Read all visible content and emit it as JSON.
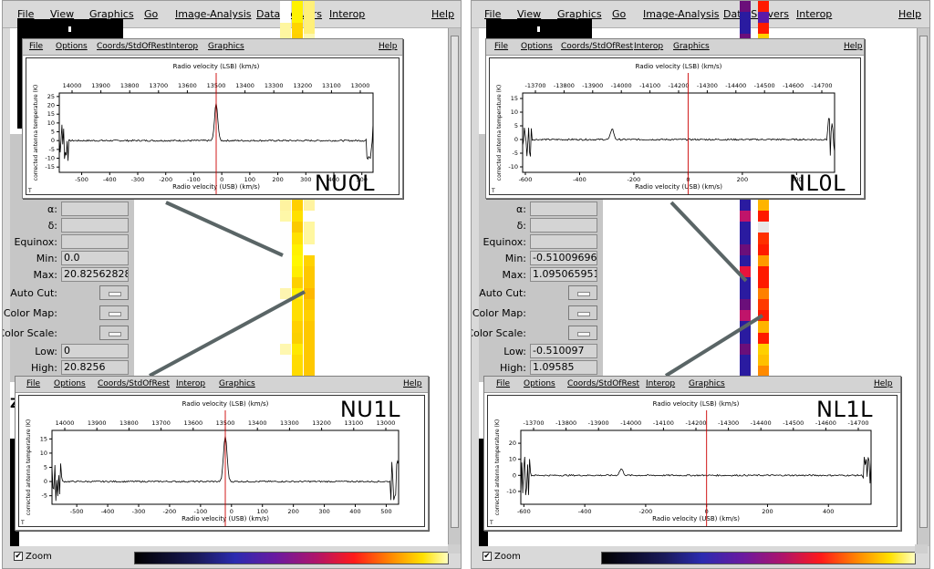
{
  "menus": {
    "items": [
      "File",
      "View",
      "Graphics",
      "Go",
      "Image-Analysis",
      "Data-Servers",
      "Interop",
      "Help"
    ]
  },
  "panel": {
    "rows": [
      {
        "label": "α:",
        "value": ""
      },
      {
        "label": "δ:",
        "value": ""
      },
      {
        "label": "Equinox:",
        "value": ""
      },
      {
        "label": "Min:",
        "value": "",
        "key": "min"
      },
      {
        "label": "Max:",
        "value": "",
        "key": "max"
      },
      {
        "label": "Auto Cut:",
        "button": true
      },
      {
        "label": "Color Map:",
        "button": true
      },
      {
        "label": "Color Scale:",
        "button": true
      },
      {
        "label": "Low:",
        "value": "",
        "key": "low"
      },
      {
        "label": "High:",
        "value": "",
        "key": "high"
      }
    ]
  },
  "left_window": {
    "min": "0.0",
    "max": "20.8256282806",
    "low": "0",
    "high": "20.8256",
    "left_cutoff_text": "Z"
  },
  "right_window": {
    "min": "-0.5100969672",
    "max": "1.0950659513",
    "low": "-0.510097",
    "high": "1.09585"
  },
  "zoom_label": "Zoom",
  "spectrum_menu": [
    "File",
    "Options",
    "Coords/StdOfRest",
    "Interop",
    "Graphics",
    "Help"
  ],
  "axis_titles": {
    "top": "Radio velocity (LSB) (km/s)",
    "bottom": "Radio velocity (USB) (km/s)",
    "y": "corrected antenna temperature (K)"
  },
  "spectra": [
    {
      "id": "NU0L",
      "label": "NU0L",
      "top_ticks": [
        "14000",
        "13900",
        "13800",
        "13700",
        "13600",
        "13500",
        "13400",
        "13300",
        "13200",
        "13100",
        "13000"
      ],
      "bottom_ticks": [
        "-500",
        "-400",
        "-300",
        "-200",
        "-100",
        "0",
        "100",
        "200",
        "300",
        "400",
        "500"
      ],
      "y_ticks": [
        "25",
        "20",
        "15",
        "10",
        "5",
        "0",
        "-5",
        "-10",
        "-15"
      ],
      "chart_data": {
        "type": "line",
        "x_range": [
          -580,
          540
        ],
        "y_range": [
          -18,
          27
        ],
        "peak_x": -20,
        "peak_y": 21,
        "baseline_y": 0,
        "noise_edges": true,
        "reference_line_x": -20,
        "reference_line_color": "#cc0000"
      }
    },
    {
      "id": "NL0L",
      "label": "NL0L",
      "top_ticks": [
        "-13700",
        "-13800",
        "-13900",
        "-14000",
        "-14100",
        "-14200",
        "-14300",
        "-14400",
        "-14500",
        "-14600",
        "-14700"
      ],
      "bottom_ticks": [
        "-600",
        "-400",
        "-200",
        "0",
        "200",
        "400"
      ],
      "y_ticks": [
        "15",
        "10",
        "5",
        "0",
        "-5",
        "-10"
      ],
      "chart_data": {
        "type": "line",
        "x_range": [
          -610,
          540
        ],
        "y_range": [
          -12,
          17
        ],
        "peak_x": -280,
        "peak_y": 4,
        "baseline_y": 0,
        "noise_edges": true,
        "reference_line_x": 0,
        "reference_line_color": "#cc0000"
      }
    },
    {
      "id": "NU1L",
      "label": "NU1L",
      "top_ticks": [
        "14000",
        "13900",
        "13800",
        "13700",
        "13600",
        "13500",
        "13400",
        "13300",
        "13200",
        "13100",
        "13000"
      ],
      "bottom_ticks": [
        "-500",
        "-400",
        "-300",
        "-200",
        "-100",
        "0",
        "100",
        "200",
        "300",
        "400",
        "500"
      ],
      "y_ticks": [
        "15",
        "10",
        "5",
        "0",
        "-5"
      ],
      "chart_data": {
        "type": "line",
        "x_range": [
          -580,
          540
        ],
        "y_range": [
          -8,
          18
        ],
        "peak_x": -20,
        "peak_y": 16,
        "baseline_y": 0,
        "noise_edges": true,
        "reference_line_x": -20,
        "reference_line_color": "#cc0000"
      }
    },
    {
      "id": "NL1L",
      "label": "NL1L",
      "top_ticks": [
        "-13700",
        "-13800",
        "-13900",
        "-14000",
        "-14100",
        "-14200",
        "-14300",
        "-14400",
        "-14500",
        "-14600",
        "-14700"
      ],
      "bottom_ticks": [
        "-600",
        "-400",
        "-200",
        "0",
        "200",
        "400"
      ],
      "y_ticks": [
        "20",
        "10",
        "0",
        "-10"
      ],
      "chart_data": {
        "type": "line",
        "x_range": [
          -610,
          540
        ],
        "y_range": [
          -18,
          28
        ],
        "peak_x": -280,
        "peak_y": 4,
        "baseline_y": 0,
        "noise_edges": true,
        "reference_line_x": 0,
        "reference_line_color": "#cc0000"
      }
    }
  ],
  "colors": {
    "window_bg": "#d9d9d9",
    "panel_bg": "#c6c6c6",
    "reference_line": "#cc0000",
    "connector": "#5a6566"
  },
  "strips": {
    "left_a": [
      "#fefefe",
      "#fefefe",
      "#fef6a0",
      "#fef6a0",
      "#fefefe",
      "#fefefe",
      "#fdf3a0",
      "#fefefe",
      "#fefefe",
      "#fefefe",
      "#fff89a",
      "#fefefe",
      "#fefefe",
      "#fef7aa",
      "#fef8b0",
      "#fefefe",
      "#fefefe",
      "#fef3a0",
      "#fef3a0",
      "#fef7a8",
      "#fefefe",
      "#fefefe",
      "#fefefe",
      "#fefefe",
      "#fefefe",
      "#fefefe",
      "#fef5b0",
      "#fefefe",
      "#fefefe",
      "#fefefe",
      "#fefefe",
      "#fef7b0",
      "#fefefe",
      "#fefefe"
    ],
    "left_b": [
      "#fff200",
      "#fff200",
      "#ffd400",
      "#ffd000",
      "#ffd200",
      "#fdb300",
      "#fff200",
      "#fff100",
      "#fff000",
      "#fff000",
      "#fffd00",
      "#fff200",
      "#ffeb00",
      "#ffe600",
      "#ffe200",
      "#fff200",
      "#ffe800",
      "#ffd800",
      "#ffcf00",
      "#ffe000",
      "#fbca00",
      "#ffe100",
      "#fff100",
      "#fff700",
      "#ffee00",
      "#fdd100",
      "#fff000",
      "#ffdf00",
      "#ffde00",
      "#ffd100",
      "#fbd000",
      "#ffe800",
      "#ffdc00",
      "#ffdb00"
    ],
    "left_c": [
      "#fff07a",
      "#fff07a",
      "#fff07a",
      "#fef8b0",
      "#fff7a0",
      "#fef06a",
      "#ffe45a",
      "#fff090",
      "#ffffff",
      "#ffffff",
      "#fff7a0",
      "#ffffff",
      "#fff7a0",
      "#ffffff",
      "#ffffff",
      "#fff7a0",
      "#ffffff",
      "#fff7a0",
      "#fff3a0",
      "#ffffff",
      "#fff7a0",
      "#fff7a0",
      "#ffffff",
      "#ffd200",
      "#fec800",
      "#fec800",
      "#feb800",
      "#fec800",
      "#ffd000",
      "#fec800",
      "#fec800",
      "#fec800",
      "#fec800",
      "#fec800"
    ],
    "right_a": [
      "#6b0f7a",
      "#2a1ba0",
      "#2a1ba0",
      "#6b0f7a",
      "#2a1ba0",
      "#2a1ba0",
      "#2a1ba0",
      "#2a1ba0",
      "#6b0f7a",
      "#2a1ba0",
      "#2a1ba0",
      "#2a1ba0",
      "#6b0f7a",
      "#2a1ba0",
      "#c0146a",
      "#7b1270",
      "#2a1ba0",
      "#6b0f7a",
      "#2a1ba0",
      "#c0146a",
      "#2a1ba0",
      "#2a1ba0",
      "#6b0f7a",
      "#2a1ba0",
      "#e8143c",
      "#2a1ba0",
      "#2a1ba0",
      "#6b0f7a",
      "#c0146a",
      "#2a1ba0",
      "#2a1ba0",
      "#6b0f7a",
      "#2a1ba0",
      "#2a1ba0"
    ],
    "right_b": [
      "#ff1a00",
      "#5a1aa8",
      "#ff1a00",
      "#ffcf00",
      "#ff1a00",
      "#ff8a00",
      "#ff1a00",
      "#ff1a00",
      "#ffb000",
      "#ff1a00",
      "#ff6a00",
      "#ff1a00",
      "#ff1a00",
      "#ffd000",
      "#fff8c0",
      "#ff1a00",
      "#ff1a00",
      "#ff1a00",
      "#ffb400",
      "#ff1a00",
      "#e8e8e8",
      "#ff3000",
      "#ff1a00",
      "#ff9a00",
      "#ff1a00",
      "#ff1a00",
      "#ff8000",
      "#ff3a00",
      "#ff1a00",
      "#ffb400",
      "#ff1a00",
      "#ffd000",
      "#ffc000",
      "#ff8a00"
    ]
  }
}
